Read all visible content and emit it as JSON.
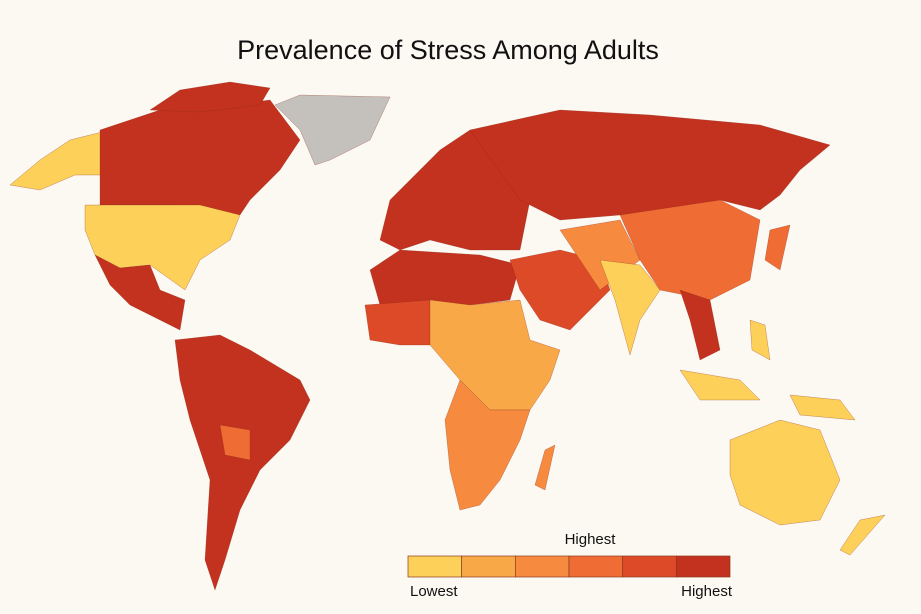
{
  "title": "Prevalence of Stress Among Adults",
  "legend": {
    "title": "Highest",
    "low_label": "Lowest",
    "high_label": "Highest",
    "colors": [
      "#fdd05a",
      "#f9a848",
      "#f68b40",
      "#ef6c34",
      "#dc4a28",
      "#c3311f"
    ]
  }
}
